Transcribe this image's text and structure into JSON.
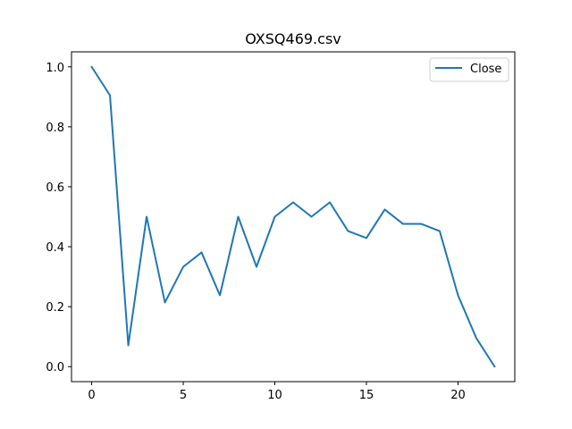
{
  "chart_data": {
    "type": "line",
    "title": "OXSQ469.csv",
    "xlabel": "",
    "ylabel": "",
    "xlim": [
      -1.1,
      23.1
    ],
    "ylim": [
      -0.05,
      1.05
    ],
    "xticks": [
      0,
      5,
      10,
      15,
      20
    ],
    "yticks": [
      0.0,
      0.2,
      0.4,
      0.6,
      0.8,
      1.0
    ],
    "xtick_labels": [
      "0",
      "5",
      "10",
      "15",
      "20"
    ],
    "ytick_labels": [
      "0.0",
      "0.2",
      "0.4",
      "0.6",
      "0.8",
      "1.0"
    ],
    "grid": false,
    "legend_position": "top-right",
    "series": [
      {
        "name": "Close",
        "color": "#1f77b4",
        "x": [
          0,
          1,
          2,
          3,
          4,
          5,
          6,
          7,
          8,
          9,
          10,
          11,
          12,
          13,
          14,
          15,
          16,
          17,
          18,
          19,
          20,
          21,
          22
        ],
        "values": [
          1.0,
          0.905,
          0.071,
          0.5,
          0.214,
          0.333,
          0.381,
          0.238,
          0.5,
          0.333,
          0.5,
          0.548,
          0.5,
          0.548,
          0.452,
          0.429,
          0.524,
          0.476,
          0.476,
          0.452,
          0.238,
          0.095,
          0.0
        ]
      }
    ]
  }
}
